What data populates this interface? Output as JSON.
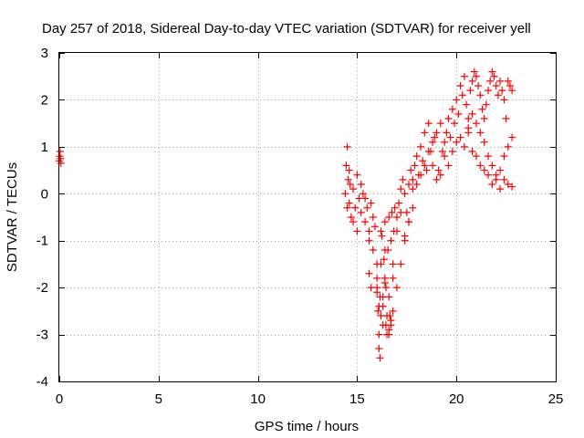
{
  "chart_data": {
    "type": "scatter",
    "title": "Day 257 of 2018, Sidereal Day-to-day VTEC variation (SDTVAR) for receiver yell",
    "xlabel": "GPS time / hours",
    "ylabel": "SDTVAR / TECUs",
    "xlim": [
      0,
      25
    ],
    "ylim": [
      -4,
      3
    ],
    "xticks": [
      0,
      5,
      10,
      15,
      20,
      25
    ],
    "yticks": [
      -4,
      -3,
      -2,
      -1,
      0,
      1,
      2,
      3
    ],
    "grid": true,
    "marker": "+",
    "series": [
      {
        "name": "SDTVAR",
        "color": "#ff0000",
        "x": [
          0.0,
          0.02,
          0.04,
          0.06,
          0.08,
          14.4,
          14.45,
          14.5,
          14.55,
          14.6,
          14.65,
          14.7,
          14.8,
          14.9,
          15.0,
          15.1,
          15.2,
          15.3,
          15.4,
          15.5,
          15.6,
          15.7,
          15.8,
          15.9,
          16.0,
          16.05,
          16.1,
          16.15,
          16.2,
          16.25,
          16.3,
          16.35,
          16.4,
          16.45,
          16.5,
          16.55,
          16.6,
          16.65,
          16.7,
          16.75,
          16.8,
          16.85,
          16.9,
          17.0,
          17.1,
          17.2,
          17.3,
          17.4,
          17.5,
          17.6,
          17.7,
          17.8,
          17.9,
          18.0,
          18.1,
          18.2,
          18.3,
          18.4,
          18.5,
          18.6,
          18.7,
          18.8,
          18.9,
          19.0,
          19.1,
          19.2,
          19.3,
          19.4,
          19.5,
          19.6,
          19.7,
          19.8,
          19.9,
          20.0,
          20.1,
          20.2,
          20.3,
          20.4,
          20.5,
          20.6,
          20.7,
          20.8,
          20.9,
          21.0,
          21.1,
          21.2,
          21.3,
          21.4,
          21.5,
          21.6,
          21.7,
          21.8,
          21.9,
          22.0,
          22.1,
          22.2,
          22.3,
          22.4,
          22.5,
          22.6,
          22.7,
          22.8,
          14.5,
          14.6,
          14.8,
          15.0,
          15.2,
          15.4,
          15.6,
          15.8,
          16.0,
          16.2,
          16.4,
          16.6,
          16.8,
          17.0,
          17.2,
          17.4,
          17.6,
          17.8,
          18.0,
          18.2,
          18.4,
          18.6,
          18.8,
          19.0,
          19.2,
          19.4,
          19.6,
          19.8,
          20.0,
          20.2,
          20.4,
          20.6,
          20.8,
          21.0,
          21.2,
          21.4,
          21.6,
          21.8,
          22.0,
          22.2,
          22.4,
          22.6,
          22.8,
          16.0,
          16.1,
          16.2,
          16.3,
          16.4,
          16.5,
          16.6,
          16.7,
          16.8,
          17.0,
          17.2,
          17.4,
          17.6,
          17.8,
          20.6,
          20.8,
          21.0,
          21.2,
          21.4,
          21.6,
          21.8,
          22.0,
          22.2,
          22.4,
          22.6,
          22.8,
          15.6,
          15.7,
          16.0,
          16.1,
          16.15,
          16.3,
          16.4,
          16.45,
          16.6,
          16.7
        ],
        "y": [
          0.7,
          0.8,
          0.9,
          0.75,
          0.65,
          0.0,
          0.6,
          1.0,
          0.3,
          -0.2,
          0.2,
          -0.5,
          0.1,
          -0.3,
          0.4,
          -0.1,
          -0.4,
          0.0,
          -0.6,
          -0.3,
          -0.8,
          -0.2,
          -1.2,
          -0.7,
          -1.8,
          -2.5,
          -3.0,
          -2.2,
          -1.5,
          -0.9,
          -2.8,
          -1.4,
          -0.6,
          -2.0,
          -3.0,
          -1.2,
          -0.5,
          -2.6,
          -1.0,
          -0.4,
          -1.8,
          -0.8,
          -0.3,
          -0.5,
          -0.2,
          0.1,
          0.3,
          0.0,
          -0.4,
          0.2,
          0.5,
          0.3,
          0.6,
          0.8,
          0.4,
          1.0,
          0.7,
          1.3,
          0.5,
          1.5,
          0.9,
          0.6,
          1.2,
          0.3,
          0.5,
          0.4,
          0.9,
          1.1,
          1.3,
          1.6,
          1.2,
          1.8,
          1.5,
          2.0,
          1.7,
          2.3,
          2.1,
          2.5,
          1.9,
          1.6,
          2.2,
          2.4,
          2.6,
          2.5,
          2.3,
          2.1,
          1.8,
          1.6,
          1.9,
          2.2,
          2.4,
          2.6,
          2.5,
          2.3,
          2.1,
          2.4,
          2.2,
          2.0,
          1.6,
          2.4,
          2.3,
          2.2,
          -0.3,
          0.5,
          -0.6,
          -0.8,
          0.2,
          -0.1,
          -1.0,
          -0.5,
          -1.5,
          -0.8,
          -1.2,
          -2.2,
          -1.5,
          -0.8,
          -0.4,
          -0.9,
          -0.6,
          0.1,
          0.2,
          0.4,
          0.6,
          0.9,
          1.1,
          1.3,
          1.5,
          0.8,
          0.6,
          0.9,
          1.1,
          1.2,
          1.0,
          1.3,
          0.9,
          0.8,
          0.6,
          0.5,
          0.4,
          0.2,
          0.3,
          0.5,
          0.8,
          1.0,
          1.2,
          -2.0,
          -2.4,
          -2.6,
          -2.2,
          -1.8,
          -2.6,
          -2.9,
          -2.8,
          -2.5,
          -2.0,
          -1.5,
          -1.0,
          -0.6,
          -0.3,
          1.4,
          1.7,
          1.5,
          1.3,
          1.1,
          0.8,
          0.6,
          0.4,
          0.1,
          0.3,
          0.2,
          0.15,
          -1.7,
          -2.0,
          -2.1,
          -3.3,
          -3.5,
          -2.4,
          -1.9,
          -2.8,
          -3.0,
          -2.7
        ]
      }
    ]
  }
}
